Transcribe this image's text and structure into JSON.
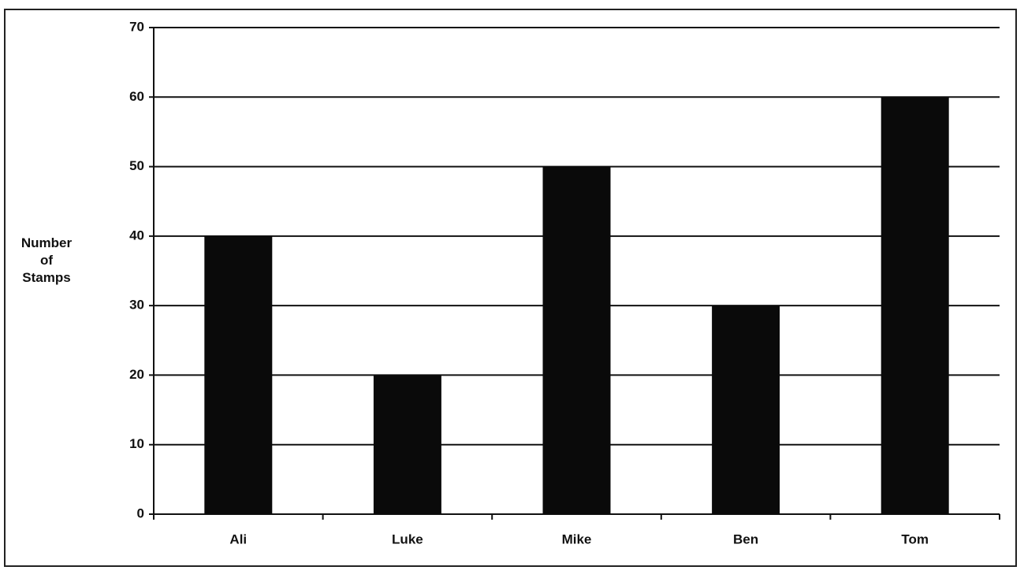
{
  "chart_data": {
    "type": "bar",
    "y_label": "Number of Stamps",
    "categories": [
      "Ali",
      "Luke",
      "Mike",
      "Ben",
      "Tom"
    ],
    "values": [
      40,
      20,
      50,
      30,
      60
    ],
    "color": "#0a0a0a",
    "ylim": [
      0,
      70
    ],
    "yticks": [
      0,
      10,
      20,
      30,
      40,
      50,
      60,
      70
    ],
    "grid": true
  }
}
